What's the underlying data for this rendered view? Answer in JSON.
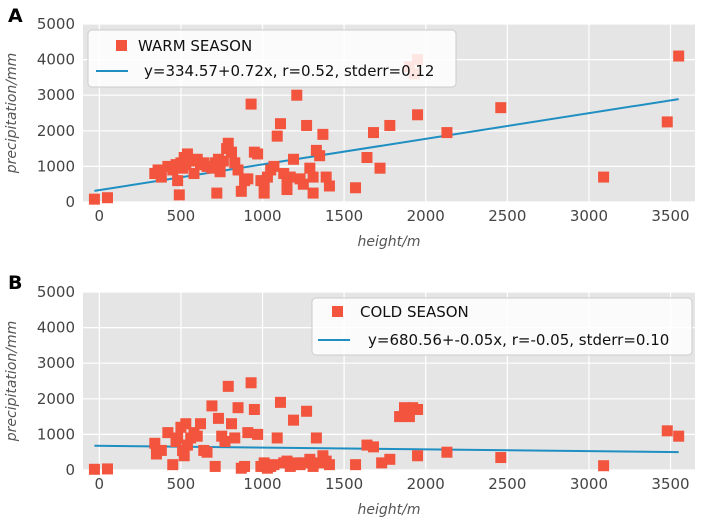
{
  "colors": {
    "points": "#f2543d",
    "line": "#1f8fc2",
    "panel_bg": "#e5e5e5"
  },
  "chart_data": [
    {
      "panel_label": "A",
      "type": "scatter",
      "title": "",
      "xlabel": "height/m",
      "ylabel": "precipitation/mm",
      "xlim": [
        -100,
        3650
      ],
      "ylim": [
        0,
        5000
      ],
      "xticks": [
        0,
        500,
        1000,
        1500,
        2000,
        2500,
        3000,
        3500
      ],
      "yticks": [
        0,
        1000,
        2000,
        3000,
        4000,
        5000
      ],
      "legend_position": "top-left",
      "series": [
        {
          "name": "WARM SEASON",
          "kind": "scatter",
          "points": [
            [
              -30,
              80
            ],
            [
              50,
              120
            ],
            [
              340,
              800
            ],
            [
              360,
              900
            ],
            [
              380,
              700
            ],
            [
              420,
              1000
            ],
            [
              450,
              900
            ],
            [
              470,
              1050
            ],
            [
              480,
              600
            ],
            [
              500,
              1100
            ],
            [
              510,
              950
            ],
            [
              520,
              1250
            ],
            [
              530,
              1050
            ],
            [
              540,
              1350
            ],
            [
              560,
              1150
            ],
            [
              580,
              800
            ],
            [
              600,
              1200
            ],
            [
              620,
              1050
            ],
            [
              640,
              1100
            ],
            [
              660,
              1000
            ],
            [
              690,
              950
            ],
            [
              710,
              1100
            ],
            [
              730,
              1200
            ],
            [
              740,
              850
            ],
            [
              760,
              1150
            ],
            [
              780,
              1500
            ],
            [
              790,
              1650
            ],
            [
              810,
              1400
            ],
            [
              830,
              1100
            ],
            [
              850,
              900
            ],
            [
              870,
              300
            ],
            [
              890,
              600
            ],
            [
              910,
              650
            ],
            [
              930,
              2750
            ],
            [
              950,
              1400
            ],
            [
              970,
              1350
            ],
            [
              990,
              600
            ],
            [
              1010,
              500
            ],
            [
              1030,
              700
            ],
            [
              1050,
              900
            ],
            [
              1070,
              1000
            ],
            [
              1090,
              1850
            ],
            [
              1110,
              2200
            ],
            [
              1130,
              800
            ],
            [
              1150,
              650
            ],
            [
              1170,
              700
            ],
            [
              1190,
              1200
            ],
            [
              1210,
              3000
            ],
            [
              1230,
              650
            ],
            [
              1250,
              500
            ],
            [
              1270,
              2150
            ],
            [
              1290,
              950
            ],
            [
              1310,
              700
            ],
            [
              1330,
              1450
            ],
            [
              1350,
              1300
            ],
            [
              1370,
              1900
            ],
            [
              1390,
              700
            ],
            [
              1410,
              450
            ],
            [
              490,
              200
            ],
            [
              720,
              250
            ],
            [
              1010,
              250
            ],
            [
              1150,
              350
            ],
            [
              1310,
              250
            ],
            [
              1570,
              400
            ],
            [
              1640,
              1250
            ],
            [
              1680,
              1950
            ],
            [
              1720,
              950
            ],
            [
              1780,
              2150
            ],
            [
              1900,
              3800
            ],
            [
              1930,
              3600
            ],
            [
              1950,
              2450
            ],
            [
              1950,
              4000
            ],
            [
              2130,
              1950
            ],
            [
              2460,
              2650
            ],
            [
              3090,
              700
            ],
            [
              3480,
              2250
            ],
            [
              3550,
              4100
            ]
          ]
        },
        {
          "name": "y=334.57+0.72x, r=0.52, stderr=0.12",
          "kind": "line",
          "intercept": 334.57,
          "slope": 0.72,
          "x_range": [
            -30,
            3550
          ]
        }
      ]
    },
    {
      "panel_label": "B",
      "type": "scatter",
      "title": "",
      "xlabel": "height/m",
      "ylabel": "precipitation/mm",
      "xlim": [
        -100,
        3650
      ],
      "ylim": [
        0,
        5000
      ],
      "xticks": [
        0,
        500,
        1000,
        1500,
        2000,
        2500,
        3000,
        3500
      ],
      "yticks": [
        0,
        1000,
        2000,
        3000,
        4000,
        5000
      ],
      "legend_position": "top-right",
      "series": [
        {
          "name": "COLD SEASON",
          "kind": "scatter",
          "points": [
            [
              -30,
              20
            ],
            [
              50,
              30
            ],
            [
              340,
              750
            ],
            [
              350,
              450
            ],
            [
              380,
              550
            ],
            [
              420,
              1050
            ],
            [
              450,
              150
            ],
            [
              470,
              800
            ],
            [
              480,
              900
            ],
            [
              500,
              1200
            ],
            [
              510,
              550
            ],
            [
              520,
              400
            ],
            [
              530,
              1300
            ],
            [
              540,
              700
            ],
            [
              560,
              900
            ],
            [
              580,
              1050
            ],
            [
              600,
              950
            ],
            [
              620,
              1300
            ],
            [
              640,
              550
            ],
            [
              660,
              500
            ],
            [
              690,
              1800
            ],
            [
              710,
              100
            ],
            [
              730,
              1450
            ],
            [
              750,
              950
            ],
            [
              770,
              800
            ],
            [
              790,
              2350
            ],
            [
              810,
              1300
            ],
            [
              830,
              900
            ],
            [
              850,
              1750
            ],
            [
              870,
              50
            ],
            [
              890,
              100
            ],
            [
              910,
              1050
            ],
            [
              930,
              2450
            ],
            [
              950,
              1700
            ],
            [
              970,
              1000
            ],
            [
              990,
              100
            ],
            [
              1010,
              200
            ],
            [
              1030,
              50
            ],
            [
              1050,
              100
            ],
            [
              1070,
              150
            ],
            [
              1090,
              900
            ],
            [
              1110,
              1900
            ],
            [
              1130,
              200
            ],
            [
              1150,
              250
            ],
            [
              1170,
              100
            ],
            [
              1190,
              1400
            ],
            [
              1210,
              200
            ],
            [
              1230,
              150
            ],
            [
              1250,
              200
            ],
            [
              1270,
              1650
            ],
            [
              1290,
              300
            ],
            [
              1310,
              100
            ],
            [
              1330,
              900
            ],
            [
              1350,
              200
            ],
            [
              1370,
              400
            ],
            [
              1390,
              250
            ],
            [
              1410,
              150
            ],
            [
              1570,
              150
            ],
            [
              1640,
              700
            ],
            [
              1680,
              650
            ],
            [
              1730,
              200
            ],
            [
              1780,
              300
            ],
            [
              1840,
              1500
            ],
            [
              1870,
              1750
            ],
            [
              1900,
              1500
            ],
            [
              1920,
              1750
            ],
            [
              1950,
              400
            ],
            [
              1950,
              1700
            ],
            [
              2130,
              500
            ],
            [
              2460,
              350
            ],
            [
              3090,
              120
            ],
            [
              3480,
              1100
            ],
            [
              3550,
              950
            ]
          ]
        },
        {
          "name": "y=680.56+-0.05x, r=-0.05, stderr=0.10",
          "kind": "line",
          "intercept": 680.56,
          "slope": -0.05,
          "x_range": [
            -30,
            3550
          ]
        }
      ]
    }
  ]
}
